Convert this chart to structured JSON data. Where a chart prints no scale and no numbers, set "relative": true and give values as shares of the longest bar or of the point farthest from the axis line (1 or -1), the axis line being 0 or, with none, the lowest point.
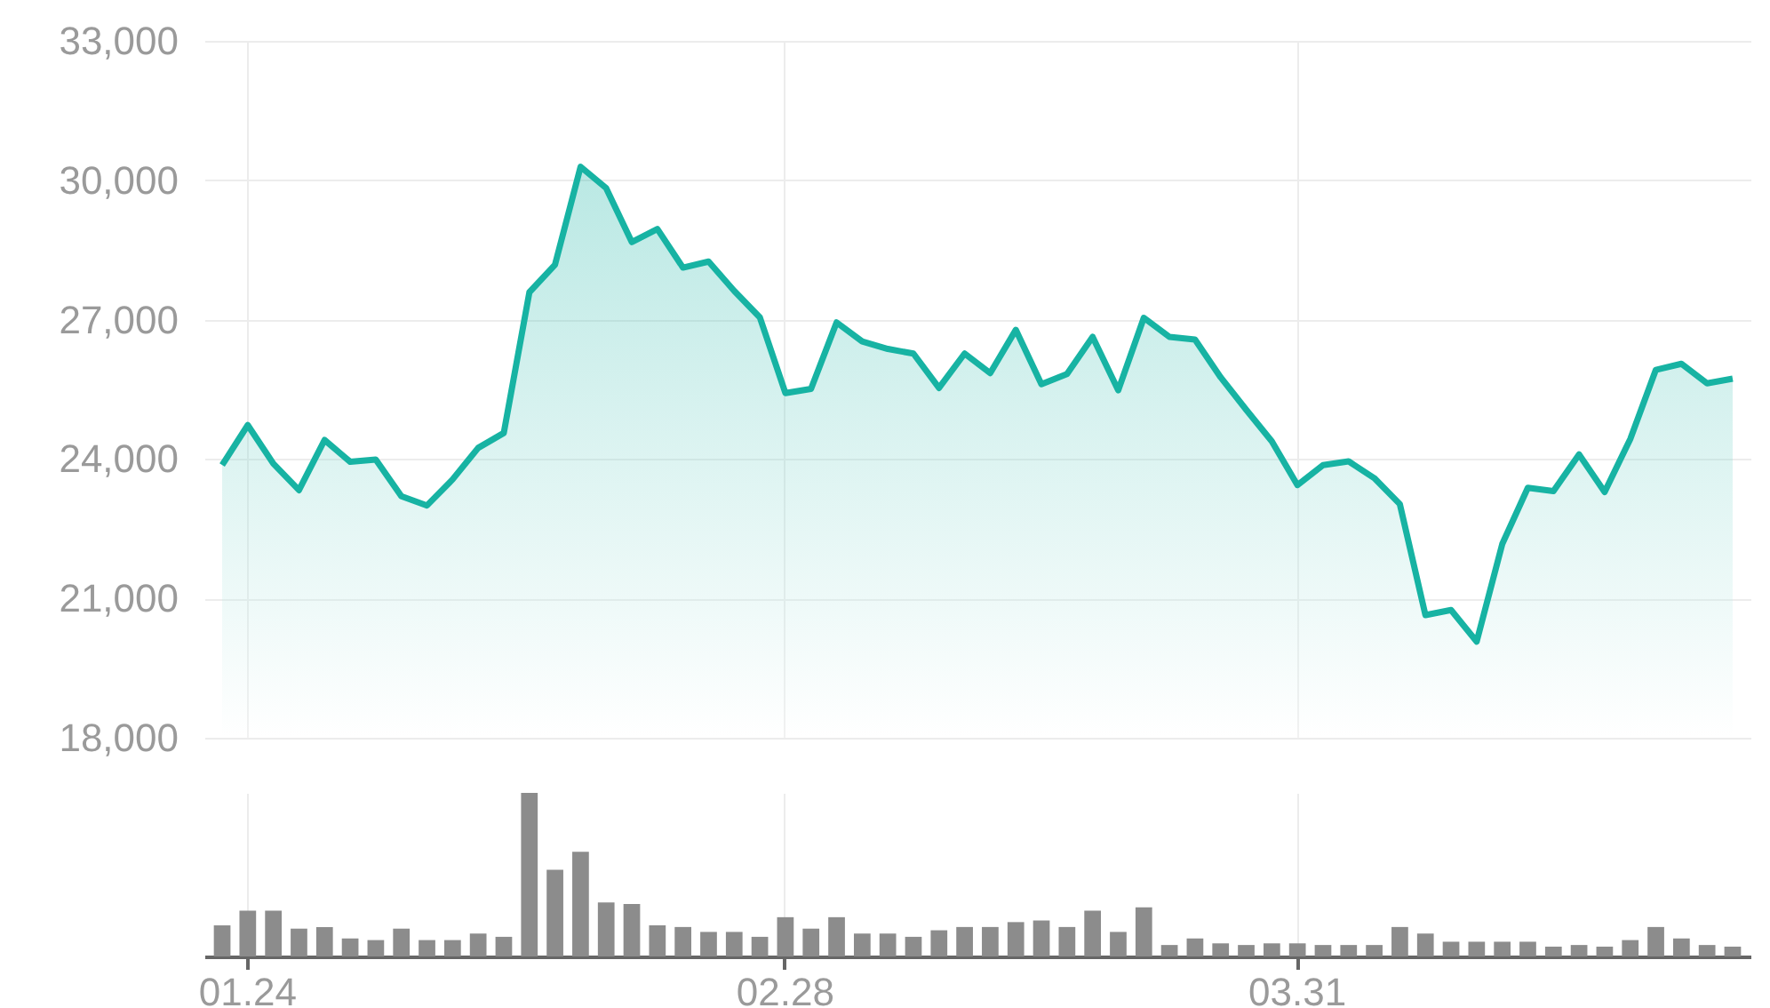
{
  "chart_data": [
    {
      "type": "area",
      "color": "#17b3a3",
      "grid": true,
      "tick_labels": "y",
      "categories": [
        null,
        "01.24",
        null,
        null,
        null,
        null,
        null,
        null,
        null,
        null,
        null,
        null,
        null,
        null,
        null,
        null,
        null,
        null,
        null,
        null,
        null,
        null,
        "02.28",
        null,
        null,
        null,
        null,
        null,
        null,
        null,
        null,
        null,
        null,
        null,
        null,
        null,
        null,
        null,
        null,
        null,
        null,
        null,
        "03.31",
        null,
        null,
        null,
        null,
        null,
        null,
        null,
        null,
        null,
        null,
        null,
        null,
        null,
        null,
        null,
        null,
        null
      ],
      "values": [
        23870,
        24730,
        23900,
        23330,
        24410,
        23940,
        23990,
        23200,
        23000,
        23560,
        24240,
        24560,
        27590,
        28180,
        30290,
        29830,
        28670,
        28950,
        28120,
        28250,
        27620,
        27050,
        25420,
        25510,
        26940,
        26530,
        26370,
        26270,
        25530,
        26270,
        25850,
        26780,
        25610,
        25830,
        26630,
        25480,
        27040,
        26630,
        26570,
        25760,
        25060,
        24380,
        23440,
        23870,
        23950,
        23590,
        23030,
        20640,
        20750,
        20070,
        22170,
        23380,
        23310,
        24100,
        23290,
        24430,
        25920,
        26050,
        25630,
        25730
      ],
      "ylim": [
        18000,
        33000
      ],
      "yticks": [
        {
          "value": 18000,
          "label": "18,000"
        },
        {
          "value": 21000,
          "label": "21,000"
        },
        {
          "value": 24000,
          "label": "24,000"
        },
        {
          "value": 27000,
          "label": "27,000"
        },
        {
          "value": 30000,
          "label": "30,000"
        },
        {
          "value": 33000,
          "label": "33,000"
        }
      ]
    },
    {
      "type": "bar",
      "color": "#8c8c8c",
      "relative": true,
      "grid": "x",
      "tick_labels": "x",
      "categories": [
        null,
        "01.24",
        null,
        null,
        null,
        null,
        null,
        null,
        null,
        null,
        null,
        null,
        null,
        null,
        null,
        null,
        null,
        null,
        null,
        null,
        null,
        null,
        "02.28",
        null,
        null,
        null,
        null,
        null,
        null,
        null,
        null,
        null,
        null,
        null,
        null,
        null,
        null,
        null,
        null,
        null,
        null,
        null,
        "03.31",
        null,
        null,
        null,
        null,
        null,
        null,
        null,
        null,
        null,
        null,
        null,
        null,
        null,
        null,
        null,
        null,
        null
      ],
      "values": [
        0.19,
        0.28,
        0.28,
        0.17,
        0.18,
        0.11,
        0.1,
        0.17,
        0.1,
        0.1,
        0.14,
        0.12,
        1,
        0.53,
        0.64,
        0.33,
        0.32,
        0.19,
        0.18,
        0.15,
        0.15,
        0.12,
        0.24,
        0.17,
        0.24,
        0.14,
        0.14,
        0.12,
        0.16,
        0.18,
        0.18,
        0.21,
        0.22,
        0.18,
        0.28,
        0.15,
        0.3,
        0.07,
        0.11,
        0.08,
        0.07,
        0.08,
        0.08,
        0.07,
        0.07,
        0.07,
        0.18,
        0.14,
        0.09,
        0.09,
        0.09,
        0.09,
        0.06,
        0.07,
        0.06,
        0.1,
        0.18,
        0.11,
        0.07,
        0.06
      ]
    }
  ]
}
